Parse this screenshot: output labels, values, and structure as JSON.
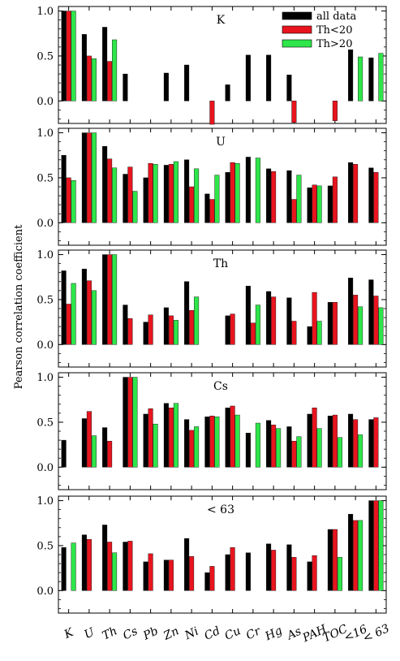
{
  "ylabel": "Pearson correlation coefficient",
  "legend": {
    "position": "top-right",
    "entries": [
      {
        "label": "all data",
        "color": "#000000"
      },
      {
        "label": "Th<20",
        "color": "#e8141e"
      },
      {
        "label": "Th>20",
        "color": "#2ee64a"
      }
    ]
  },
  "chart_data": [
    {
      "type": "bar",
      "title": "K",
      "ylim": [
        -0.25,
        1.05
      ],
      "yticks": [
        "0.0",
        "0.5",
        "1.0"
      ],
      "categories": [
        "K",
        "U",
        "Th",
        "Cs",
        "Pb",
        "Zn",
        "Ni",
        "Cd",
        "Cu",
        "Cr",
        "Hg",
        "As",
        "PAH",
        "TOC",
        "<16",
        "< 63"
      ],
      "series": [
        {
          "name": "all data",
          "values": [
            1.0,
            0.74,
            0.82,
            0.3,
            null,
            0.31,
            0.4,
            null,
            0.18,
            0.51,
            0.51,
            0.29,
            null,
            null,
            0.57,
            0.48
          ]
        },
        {
          "name": "Th<20",
          "values": [
            1.0,
            0.5,
            0.44,
            null,
            null,
            null,
            null,
            -0.26,
            null,
            null,
            null,
            -0.24,
            null,
            -0.22,
            null,
            null
          ]
        },
        {
          "name": "Th>20",
          "values": [
            1.0,
            0.47,
            0.68,
            null,
            null,
            null,
            null,
            null,
            null,
            null,
            null,
            null,
            null,
            null,
            0.49,
            0.53
          ]
        }
      ]
    },
    {
      "type": "bar",
      "title": "U",
      "ylim": [
        -0.25,
        1.05
      ],
      "yticks": [
        "0.0",
        "0.5",
        "1.0"
      ],
      "categories": [
        "K",
        "U",
        "Th",
        "Cs",
        "Pb",
        "Zn",
        "Ni",
        "Cd",
        "Cu",
        "Cr",
        "Hg",
        "As",
        "PAH",
        "TOC",
        "<16",
        "< 63"
      ],
      "series": [
        {
          "name": "all data",
          "values": [
            0.75,
            1.0,
            0.85,
            0.54,
            0.5,
            0.64,
            0.7,
            0.32,
            0.56,
            0.73,
            0.6,
            0.58,
            0.39,
            0.41,
            0.67,
            0.61
          ]
        },
        {
          "name": "Th<20",
          "values": [
            0.5,
            1.0,
            0.71,
            0.62,
            0.66,
            0.65,
            0.4,
            0.26,
            0.67,
            null,
            0.57,
            0.26,
            0.42,
            0.51,
            0.65,
            0.56
          ]
        },
        {
          "name": "Th>20",
          "values": [
            0.47,
            1.0,
            0.61,
            0.35,
            0.65,
            0.68,
            0.6,
            0.53,
            0.66,
            0.72,
            null,
            0.53,
            0.41,
            null,
            null,
            null
          ]
        }
      ]
    },
    {
      "type": "bar",
      "title": "Th",
      "ylim": [
        -0.25,
        1.05
      ],
      "yticks": [
        "0.0",
        "0.5",
        "1.0"
      ],
      "categories": [
        "K",
        "U",
        "Th",
        "Cs",
        "Pb",
        "Zn",
        "Ni",
        "Cd",
        "Cu",
        "Cr",
        "Hg",
        "As",
        "PAH",
        "TOC",
        "<16",
        "< 63"
      ],
      "series": [
        {
          "name": "all data",
          "values": [
            0.82,
            0.84,
            1.0,
            0.44,
            0.25,
            0.41,
            0.7,
            null,
            0.32,
            0.65,
            0.59,
            0.52,
            0.2,
            0.47,
            0.74,
            0.72
          ]
        },
        {
          "name": "Th<20",
          "values": [
            0.45,
            0.71,
            1.0,
            0.29,
            0.33,
            0.32,
            0.38,
            null,
            0.34,
            0.24,
            0.53,
            0.26,
            0.58,
            0.47,
            0.55,
            0.54
          ]
        },
        {
          "name": "Th>20",
          "values": [
            0.68,
            0.6,
            1.0,
            null,
            null,
            0.27,
            0.53,
            null,
            null,
            0.44,
            null,
            null,
            0.26,
            null,
            0.42,
            0.41
          ]
        }
      ]
    },
    {
      "type": "bar",
      "title": "Cs",
      "ylim": [
        -0.25,
        1.05
      ],
      "yticks": [
        "0.0",
        "0.5",
        "1.0"
      ],
      "categories": [
        "K",
        "U",
        "Th",
        "Cs",
        "Pb",
        "Zn",
        "Ni",
        "Cd",
        "Cu",
        "Cr",
        "Hg",
        "As",
        "PAH",
        "TOC",
        "<16",
        "< 63"
      ],
      "series": [
        {
          "name": "all data",
          "values": [
            0.3,
            0.54,
            0.44,
            1.0,
            0.59,
            0.71,
            0.53,
            0.56,
            0.66,
            0.38,
            0.52,
            0.45,
            0.59,
            0.57,
            0.59,
            0.53
          ]
        },
        {
          "name": "Th<20",
          "values": [
            null,
            0.62,
            0.29,
            1.0,
            0.65,
            0.66,
            0.41,
            0.57,
            0.68,
            null,
            0.47,
            0.29,
            0.66,
            0.58,
            0.53,
            0.55
          ]
        },
        {
          "name": "Th>20",
          "values": [
            null,
            0.35,
            null,
            1.0,
            0.48,
            0.71,
            0.45,
            0.56,
            0.58,
            0.49,
            0.43,
            0.34,
            0.43,
            0.33,
            0.36,
            null
          ]
        }
      ]
    },
    {
      "type": "bar",
      "title": "< 63",
      "ylim": [
        -0.25,
        1.05
      ],
      "yticks": [
        "0.0",
        "0.5",
        "1.0"
      ],
      "categories": [
        "K",
        "U",
        "Th",
        "Cs",
        "Pb",
        "Zn",
        "Ni",
        "Cd",
        "Cu",
        "Cr",
        "Hg",
        "As",
        "PAH",
        "TOC",
        "<16",
        "< 63"
      ],
      "series": [
        {
          "name": "all data",
          "values": [
            0.48,
            0.62,
            0.73,
            0.54,
            0.32,
            0.34,
            0.58,
            0.2,
            0.4,
            0.42,
            0.52,
            0.51,
            0.32,
            0.68,
            0.85,
            1.0
          ]
        },
        {
          "name": "Th<20",
          "values": [
            null,
            0.57,
            0.54,
            0.55,
            0.41,
            0.34,
            0.38,
            0.27,
            0.48,
            null,
            0.45,
            0.37,
            0.39,
            0.68,
            0.78,
            1.0
          ]
        },
        {
          "name": "Th>20",
          "values": [
            0.53,
            null,
            0.42,
            null,
            null,
            null,
            null,
            null,
            null,
            null,
            null,
            null,
            null,
            0.37,
            0.78,
            1.0
          ]
        }
      ]
    }
  ]
}
